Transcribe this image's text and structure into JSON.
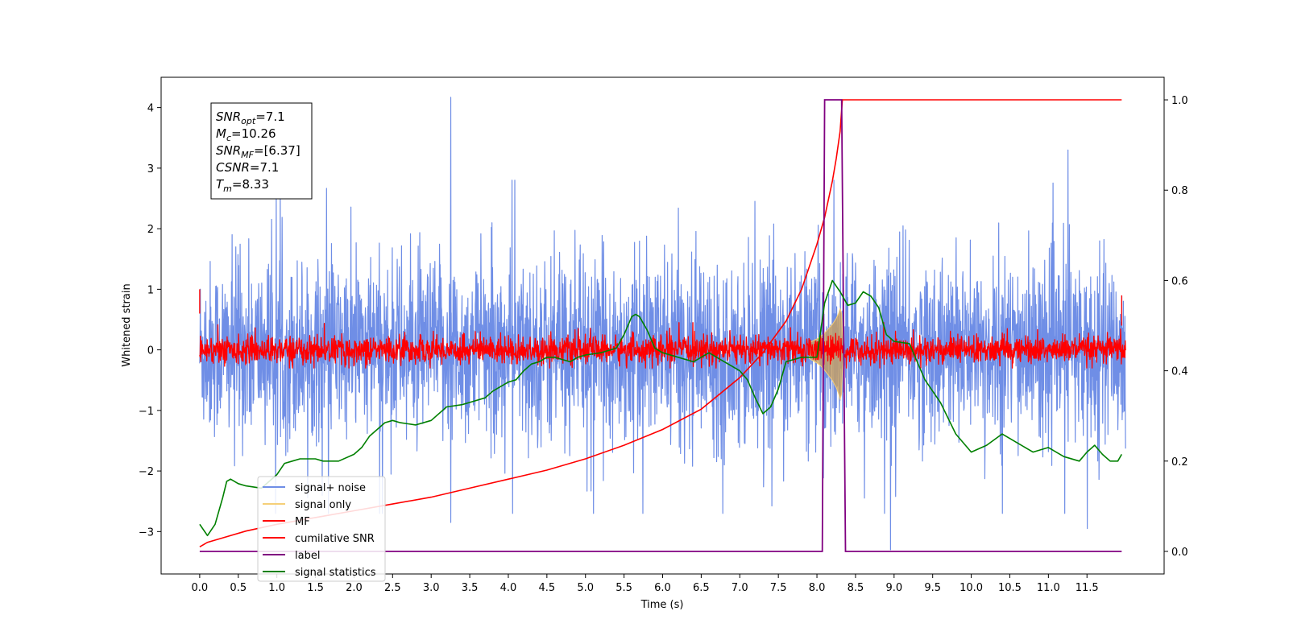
{
  "chart_data": {
    "type": "line",
    "xlabel": "Time (s)",
    "ylabel": "Whitened strain",
    "xlim": [
      -0.5,
      12.5
    ],
    "ylim": [
      -3.7,
      4.5
    ],
    "y2lim": [
      -0.05,
      1.05
    ],
    "x_ticks": [
      "0.0",
      "0.5",
      "1.0",
      "1.5",
      "2.0",
      "2.5",
      "3.0",
      "3.5",
      "4.0",
      "4.5",
      "5.0",
      "5.5",
      "6.0",
      "6.5",
      "7.0",
      "7.5",
      "8.0",
      "8.5",
      "9.0",
      "9.5",
      "10.0",
      "10.5",
      "11.0",
      "11.5"
    ],
    "y_ticks": [
      "4",
      "3",
      "2",
      "1",
      "0",
      "−1",
      "−2",
      "−3"
    ],
    "y2_ticks": [
      "1.0",
      "0.8",
      "0.6",
      "0.4",
      "0.2",
      "0.0"
    ],
    "grid": false,
    "legend_position": "lower-left",
    "annotation": {
      "lines": [
        {
          "var": "SNR",
          "sub": "opt",
          "val": "=7.1"
        },
        {
          "var": "M",
          "sub": "c",
          "val": "=10.26"
        },
        {
          "var": "SNR",
          "sub": "MF",
          "val": "=[6.37]"
        },
        {
          "var": "CSNR",
          "sub": "",
          "val": "=7.1"
        },
        {
          "var": "T",
          "sub": "m",
          "val": "=8.33"
        }
      ]
    },
    "series": [
      {
        "name": "signal+ noise",
        "color": "#6f8ee6",
        "axis": "left",
        "noise": {
          "x_start": 0.0,
          "x_end": 12.0,
          "bands": [
            [
              0.0,
              0.5,
              -1.5,
              1.5
            ],
            [
              3.0,
              3.3,
              -2.6,
              3.0
            ],
            [
              8.1,
              8.35,
              -2.0,
              2.4
            ],
            [
              9.0,
              9.3,
              -2.2,
              2.4
            ],
            [
              11.0,
              11.3,
              -2.4,
              2.6
            ]
          ]
        },
        "peaks": [
          [
            3.25,
            4.17
          ],
          [
            11.25,
            3.3
          ],
          [
            8.95,
            -3.3
          ],
          [
            11.5,
            -2.95
          ],
          [
            3.25,
            -2.85
          ]
        ]
      },
      {
        "name": "signal only",
        "color": "#f5cf78",
        "axis": "left",
        "x": [
          7.9,
          8.0,
          8.05,
          8.1,
          8.15,
          8.2,
          8.25,
          8.28,
          8.3,
          8.32,
          8.33,
          8.35
        ],
        "y": [
          0.12,
          0.18,
          0.22,
          0.28,
          0.35,
          0.42,
          0.52,
          0.6,
          0.68,
          0.6,
          0.3,
          0.0
        ]
      },
      {
        "name": "MF",
        "color": "#ff0000",
        "axis": "left",
        "noise": {
          "x_start": 0.0,
          "x_end": 12.0,
          "amplitude": 0.25
        }
      },
      {
        "name": "cumilative SNR",
        "color": "#ff0000",
        "axis": "right",
        "x": [
          0.0,
          0.1,
          0.3,
          0.6,
          1.0,
          1.5,
          2.0,
          2.5,
          3.0,
          3.5,
          4.0,
          4.5,
          5.0,
          5.5,
          6.0,
          6.5,
          7.0,
          7.3,
          7.6,
          7.8,
          8.0,
          8.1,
          8.2,
          8.25,
          8.3,
          8.33,
          11.95
        ],
        "y": [
          0.01,
          0.02,
          0.03,
          0.045,
          0.06,
          0.075,
          0.09,
          0.105,
          0.12,
          0.14,
          0.16,
          0.18,
          0.205,
          0.235,
          0.27,
          0.315,
          0.385,
          0.44,
          0.51,
          0.58,
          0.68,
          0.74,
          0.82,
          0.87,
          0.93,
          1.0,
          1.0
        ]
      },
      {
        "name": "label",
        "color": "#800080",
        "axis": "right",
        "x": [
          0.0,
          8.07,
          8.1,
          8.32,
          8.37,
          11.95
        ],
        "y": [
          0.0,
          0.0,
          1.0,
          1.0,
          0.0,
          0.0
        ]
      },
      {
        "name": "signal statistics",
        "color": "#008000",
        "axis": "right",
        "x": [
          0.0,
          0.1,
          0.2,
          0.3,
          0.35,
          0.4,
          0.5,
          0.6,
          0.8,
          1.0,
          1.1,
          1.2,
          1.3,
          1.4,
          1.5,
          1.6,
          1.8,
          2.0,
          2.1,
          2.2,
          2.3,
          2.4,
          2.5,
          2.6,
          2.8,
          3.0,
          3.2,
          3.4,
          3.5,
          3.7,
          3.8,
          4.0,
          4.1,
          4.2,
          4.3,
          4.4,
          4.5,
          4.6,
          4.7,
          4.8,
          4.9,
          5.0,
          5.2,
          5.4,
          5.5,
          5.6,
          5.65,
          5.7,
          5.8,
          5.9,
          6.0,
          6.2,
          6.4,
          6.5,
          6.6,
          6.7,
          6.8,
          7.0,
          7.1,
          7.2,
          7.3,
          7.4,
          7.5,
          7.6,
          7.8,
          8.0,
          8.1,
          8.2,
          8.3,
          8.4,
          8.5,
          8.6,
          8.7,
          8.8,
          8.9,
          9.0,
          9.2,
          9.3,
          9.4,
          9.6,
          9.8,
          10.0,
          10.2,
          10.4,
          10.6,
          10.8,
          11.0,
          11.2,
          11.4,
          11.5,
          11.6,
          11.7,
          11.8,
          11.9,
          11.95
        ],
        "y": [
          0.06,
          0.035,
          0.06,
          0.12,
          0.155,
          0.16,
          0.15,
          0.145,
          0.14,
          0.17,
          0.195,
          0.2,
          0.205,
          0.205,
          0.205,
          0.2,
          0.2,
          0.215,
          0.23,
          0.255,
          0.27,
          0.285,
          0.29,
          0.285,
          0.28,
          0.29,
          0.32,
          0.325,
          0.33,
          0.34,
          0.355,
          0.375,
          0.38,
          0.4,
          0.415,
          0.42,
          0.43,
          0.43,
          0.425,
          0.42,
          0.43,
          0.435,
          0.44,
          0.45,
          0.48,
          0.52,
          0.525,
          0.52,
          0.49,
          0.45,
          0.44,
          0.43,
          0.42,
          0.43,
          0.44,
          0.43,
          0.42,
          0.4,
          0.38,
          0.34,
          0.305,
          0.32,
          0.36,
          0.42,
          0.43,
          0.43,
          0.55,
          0.6,
          0.575,
          0.545,
          0.55,
          0.575,
          0.565,
          0.54,
          0.48,
          0.465,
          0.46,
          0.42,
          0.38,
          0.33,
          0.26,
          0.22,
          0.235,
          0.26,
          0.24,
          0.22,
          0.23,
          0.21,
          0.2,
          0.22,
          0.235,
          0.215,
          0.2,
          0.2,
          0.215
        ]
      }
    ]
  }
}
